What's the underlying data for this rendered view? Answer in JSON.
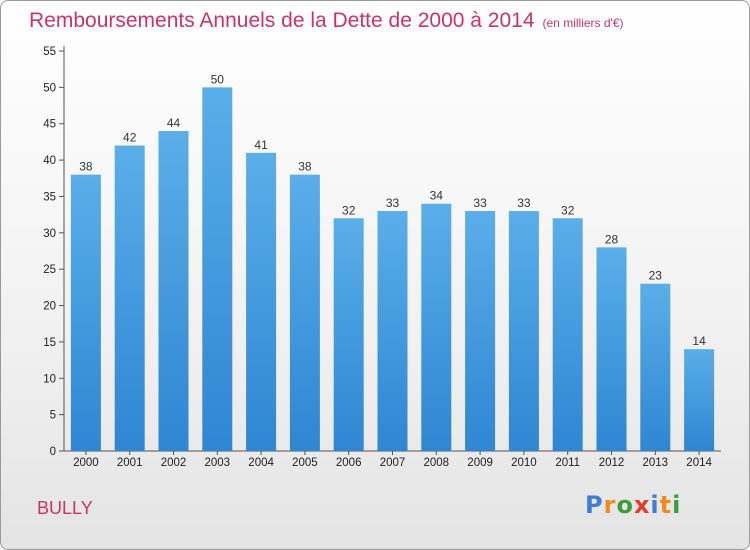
{
  "chart_data": {
    "type": "bar",
    "title": "Remboursements Annuels de la Dette de 2000 à 2014",
    "subtitle": "(en milliers d'€)",
    "categories": [
      "2000",
      "2001",
      "2002",
      "2003",
      "2004",
      "2005",
      "2006",
      "2007",
      "2008",
      "2009",
      "2010",
      "2011",
      "2012",
      "2013",
      "2014"
    ],
    "values": [
      38,
      42,
      44,
      50,
      41,
      38,
      32,
      33,
      34,
      33,
      33,
      32,
      28,
      23,
      14
    ],
    "ylim": [
      0,
      55
    ],
    "yticks": [
      0,
      5,
      10,
      15,
      20,
      25,
      30,
      35,
      40,
      45,
      50,
      55
    ],
    "xlabel": "",
    "ylabel": "",
    "grid": false,
    "bar_color": "#2f86d2"
  },
  "footer": {
    "town": "BULLY",
    "brand_letters": [
      "P",
      "r",
      "o",
      "x",
      "i",
      "t",
      "i"
    ],
    "brand_colors": [
      "#3b7fd6",
      "#f08a1c",
      "#3b9e3b",
      "#e33b2e",
      "#3b7fd6",
      "#f08a1c",
      "#3b9e3b"
    ]
  },
  "colors": {
    "title": "#cc3366"
  }
}
